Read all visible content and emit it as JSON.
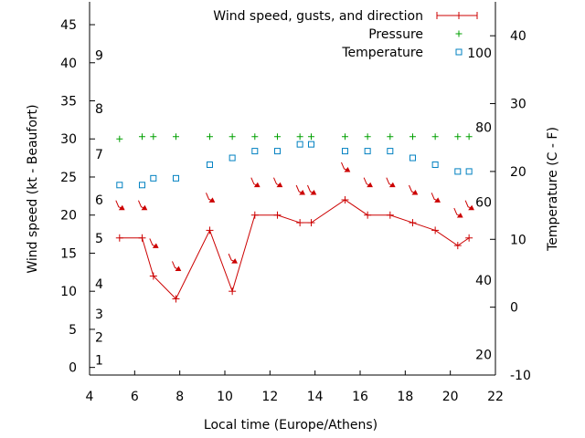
{
  "chart_data": {
    "type": "line",
    "xlabel": "Local time (Europe/Athens)",
    "ylabel": "Wind speed (kt - Beaufort)",
    "y2label": "Temperature (C - F)",
    "xlim": [
      4,
      22
    ],
    "ylim": [
      -1,
      48
    ],
    "y2lim": [
      -10,
      45
    ],
    "grid": false,
    "legend_placement": "top-right",
    "x_ticks": [
      4,
      6,
      8,
      10,
      12,
      14,
      16,
      18,
      20,
      22
    ],
    "y_ticks": [
      0,
      5,
      10,
      15,
      20,
      25,
      30,
      35,
      40,
      45
    ],
    "y2_ticks": [
      -10,
      0,
      10,
      20,
      30,
      40
    ],
    "beaufort_labels": [
      {
        "label": "1",
        "y": 1
      },
      {
        "label": "2",
        "y": 4
      },
      {
        "label": "3",
        "y": 7
      },
      {
        "label": "4",
        "y": 11
      },
      {
        "label": "5",
        "y": 17
      },
      {
        "label": "6",
        "y": 22
      },
      {
        "label": "7",
        "y": 28
      },
      {
        "label": "8",
        "y": 34
      },
      {
        "label": "9",
        "y": 41
      }
    ],
    "fahrenheit_labels": [
      {
        "label": "20",
        "y2": -7
      },
      {
        "label": "40",
        "y2": 4
      },
      {
        "label": "60",
        "y2": 15.5
      },
      {
        "label": "80",
        "y2": 26.5
      },
      {
        "label": "100",
        "y2": 37.5
      }
    ],
    "series": [
      {
        "name": "Wind speed, gusts, and direction",
        "color": "#cc0000",
        "x": [
          5.33,
          6.33,
          6.83,
          7.83,
          9.33,
          10.33,
          11.33,
          12.33,
          13.33,
          13.83,
          15.33,
          16.33,
          17.33,
          18.33,
          19.33,
          20.33,
          20.83
        ],
        "values": [
          17,
          17,
          12,
          9,
          18,
          10,
          20,
          20,
          19,
          19,
          22,
          20,
          20,
          19,
          18,
          16,
          17
        ],
        "direction_arrows": [
          {
            "x": 5.33,
            "y": 21.2
          },
          {
            "x": 6.33,
            "y": 21.2
          },
          {
            "x": 6.83,
            "y": 16.2
          },
          {
            "x": 7.83,
            "y": 13.2
          },
          {
            "x": 9.33,
            "y": 22.2
          },
          {
            "x": 10.33,
            "y": 14.2
          },
          {
            "x": 11.33,
            "y": 24.2
          },
          {
            "x": 12.33,
            "y": 24.2
          },
          {
            "x": 13.33,
            "y": 23.2
          },
          {
            "x": 13.83,
            "y": 23.2
          },
          {
            "x": 15.33,
            "y": 26.2
          },
          {
            "x": 16.33,
            "y": 24.2
          },
          {
            "x": 17.33,
            "y": 24.2
          },
          {
            "x": 18.33,
            "y": 23.2
          },
          {
            "x": 19.33,
            "y": 22.2
          },
          {
            "x": 20.33,
            "y": 20.2
          },
          {
            "x": 20.83,
            "y": 21.2
          }
        ]
      },
      {
        "name": "Pressure",
        "color": "#00a000",
        "x": [
          5.33,
          6.33,
          6.83,
          7.83,
          9.33,
          10.33,
          11.33,
          12.33,
          13.33,
          13.83,
          15.33,
          16.33,
          17.33,
          18.33,
          19.33,
          20.33,
          20.83
        ],
        "values": [
          30,
          30.3,
          30.3,
          30.3,
          30.3,
          30.3,
          30.3,
          30.3,
          30.3,
          30.3,
          30.3,
          30.3,
          30.3,
          30.3,
          30.3,
          30.3,
          30.3
        ]
      },
      {
        "name": "Temperature",
        "color": "#0080c0",
        "axis": "y2",
        "x": [
          5.33,
          6.33,
          6.83,
          7.83,
          9.33,
          10.33,
          11.33,
          12.33,
          13.33,
          13.83,
          15.33,
          16.33,
          17.33,
          18.33,
          19.33,
          20.33,
          20.83
        ],
        "values": [
          18,
          18,
          19,
          19,
          21,
          22,
          23,
          23,
          24,
          24,
          23,
          23,
          23,
          22,
          21,
          20,
          20
        ]
      }
    ]
  }
}
